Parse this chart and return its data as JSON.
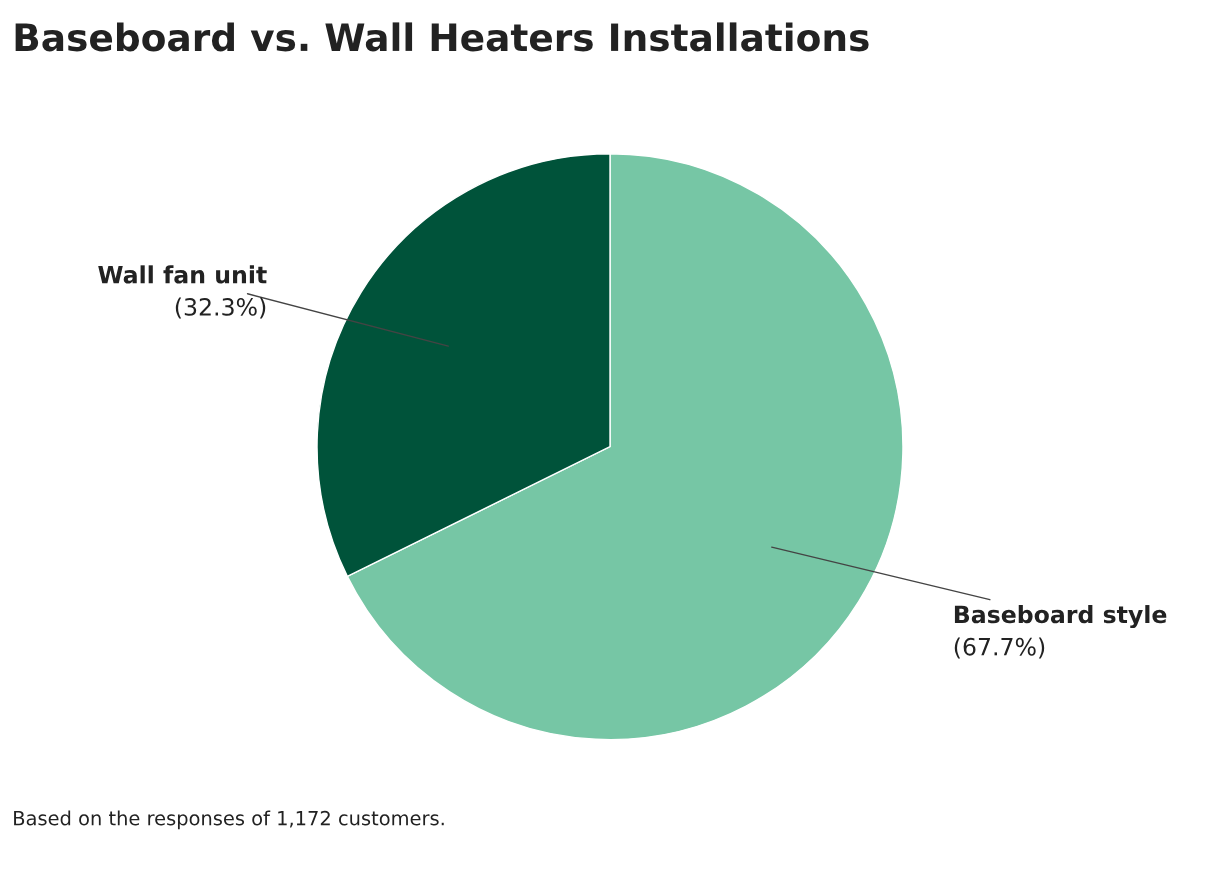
{
  "chart_data": {
    "type": "pie",
    "title": "Baseboard vs. Wall Heaters Installations",
    "categories": [
      "Baseboard style",
      "Wall fan unit"
    ],
    "values": [
      67.7,
      32.3
    ],
    "colors": [
      "#76c6a5",
      "#00533a"
    ],
    "value_labels": [
      "(67.7%)",
      "(32.3%)"
    ],
    "annotations": [
      "Based on the responses of 1,172 customers."
    ],
    "legend": false
  }
}
